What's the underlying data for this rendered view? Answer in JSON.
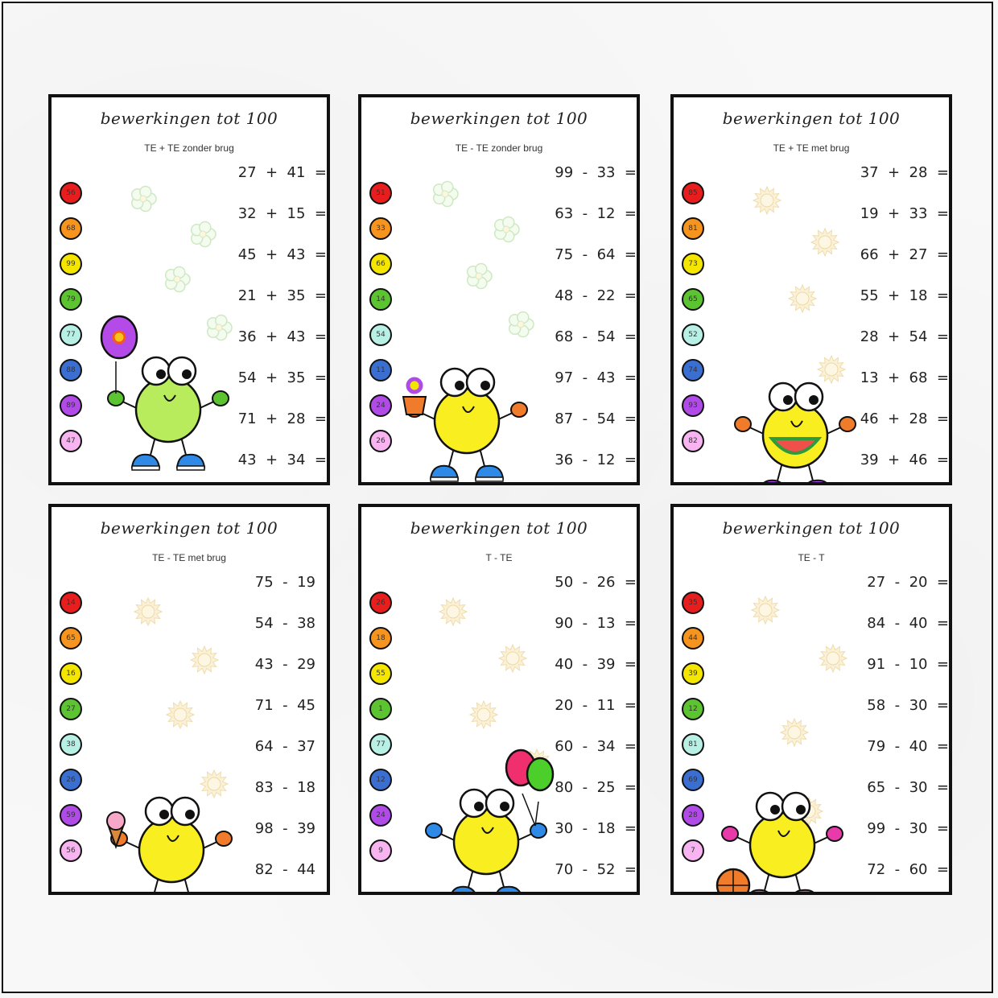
{
  "cards": [
    {
      "title": "bewerkingen tot 100",
      "subtitle": "TE + TE zonder brug",
      "deco": "flower-icon",
      "mascot": "balloon-mascot",
      "exercises": [
        "27  +  41  =",
        "32  +  15  =",
        "45  +  43  =",
        "21  +  35  =",
        "36  +  43  =",
        "54  +  35  =",
        "71  +  28  =",
        "43  +  34  ="
      ],
      "answers": [
        {
          "value": "56",
          "color": "#e81e1e"
        },
        {
          "value": "68",
          "color": "#f7941d"
        },
        {
          "value": "99",
          "color": "#f5e600"
        },
        {
          "value": "79",
          "color": "#5cc430"
        },
        {
          "value": "77",
          "color": "#b8f0e6"
        },
        {
          "value": "88",
          "color": "#3a6fd1"
        },
        {
          "value": "89",
          "color": "#b14be8"
        },
        {
          "value": "47",
          "color": "#f8b4f0"
        }
      ]
    },
    {
      "title": "bewerkingen tot 100",
      "subtitle": "TE - TE zonder brug",
      "deco": "flower-icon",
      "mascot": "flowerpot-mascot",
      "exercises": [
        "99  -  33  =",
        "63  -  12  =",
        "75  -  64  =",
        "48  -  22  =",
        "68  -  54  =",
        "97  -  43  =",
        "87  -  54  =",
        "36  -  12  ="
      ],
      "answers": [
        {
          "value": "51",
          "color": "#e81e1e"
        },
        {
          "value": "33",
          "color": "#f7941d"
        },
        {
          "value": "66",
          "color": "#f5e600"
        },
        {
          "value": "14",
          "color": "#5cc430"
        },
        {
          "value": "54",
          "color": "#b8f0e6"
        },
        {
          "value": "11",
          "color": "#3a6fd1"
        },
        {
          "value": "24",
          "color": "#b14be8"
        },
        {
          "value": "26",
          "color": "#f8b4f0"
        }
      ]
    },
    {
      "title": "bewerkingen tot 100",
      "subtitle": "TE + TE met brug",
      "deco": "sun-icon",
      "mascot": "watermelon-mascot",
      "exercises": [
        "37  +  28  =",
        "19  +  33  =",
        "66  +  27  =",
        "55  +  18  =",
        "28  +  54  =",
        "13  +  68  =",
        "46  +  28  =",
        "39  +  46  ="
      ],
      "answers": [
        {
          "value": "85",
          "color": "#e81e1e"
        },
        {
          "value": "81",
          "color": "#f7941d"
        },
        {
          "value": "73",
          "color": "#f5e600"
        },
        {
          "value": "65",
          "color": "#5cc430"
        },
        {
          "value": "52",
          "color": "#b8f0e6"
        },
        {
          "value": "74",
          "color": "#3a6fd1"
        },
        {
          "value": "93",
          "color": "#b14be8"
        },
        {
          "value": "82",
          "color": "#f8b4f0"
        }
      ]
    },
    {
      "title": "bewerkingen tot 100",
      "subtitle": "TE - TE met brug",
      "deco": "sun-icon",
      "mascot": "icecream-mascot",
      "exercises": [
        "75  -  19",
        "54  -  38",
        "43  -  29",
        "71  -  45",
        "64  -  37",
        "83  -  18",
        "98  -  39",
        "82  -  44"
      ],
      "answers": [
        {
          "value": "14",
          "color": "#e81e1e"
        },
        {
          "value": "65",
          "color": "#f7941d"
        },
        {
          "value": "16",
          "color": "#f5e600"
        },
        {
          "value": "27",
          "color": "#5cc430"
        },
        {
          "value": "38",
          "color": "#b8f0e6"
        },
        {
          "value": "26",
          "color": "#3a6fd1"
        },
        {
          "value": "59",
          "color": "#b14be8"
        },
        {
          "value": "56",
          "color": "#f8b4f0"
        }
      ]
    },
    {
      "title": "bewerkingen tot 100",
      "subtitle": "T - TE",
      "deco": "sun-icon",
      "mascot": "balloons-mascot",
      "exercises": [
        "50  -  26  =",
        "90  -  13  =",
        "40  -  39  =",
        "20  -  11  =",
        "60  -  34  =",
        "80  -  25  =",
        "30  -  18  =",
        "70  -  52  ="
      ],
      "answers": [
        {
          "value": "26",
          "color": "#e81e1e"
        },
        {
          "value": "18",
          "color": "#f7941d"
        },
        {
          "value": "55",
          "color": "#f5e600"
        },
        {
          "value": "1",
          "color": "#5cc430"
        },
        {
          "value": "77",
          "color": "#b8f0e6"
        },
        {
          "value": "12",
          "color": "#3a6fd1"
        },
        {
          "value": "24",
          "color": "#b14be8"
        },
        {
          "value": "9",
          "color": "#f8b4f0"
        }
      ]
    },
    {
      "title": "bewerkingen tot 100",
      "subtitle": "TE - T",
      "deco": "sun-icon",
      "mascot": "basketball-mascot",
      "exercises": [
        "27  -  20  =",
        "84  -  40  =",
        "91  -  10  =",
        "58  -  30  =",
        "79  -  40  =",
        "65  -  30  =",
        "99  -  30  =",
        "72  -  60  ="
      ],
      "answers": [
        {
          "value": "35",
          "color": "#e81e1e"
        },
        {
          "value": "44",
          "color": "#f7941d"
        },
        {
          "value": "39",
          "color": "#f5e600"
        },
        {
          "value": "12",
          "color": "#5cc430"
        },
        {
          "value": "81",
          "color": "#b8f0e6"
        },
        {
          "value": "69",
          "color": "#3a6fd1"
        },
        {
          "value": "28",
          "color": "#b14be8"
        },
        {
          "value": "7",
          "color": "#f8b4f0"
        }
      ]
    }
  ]
}
